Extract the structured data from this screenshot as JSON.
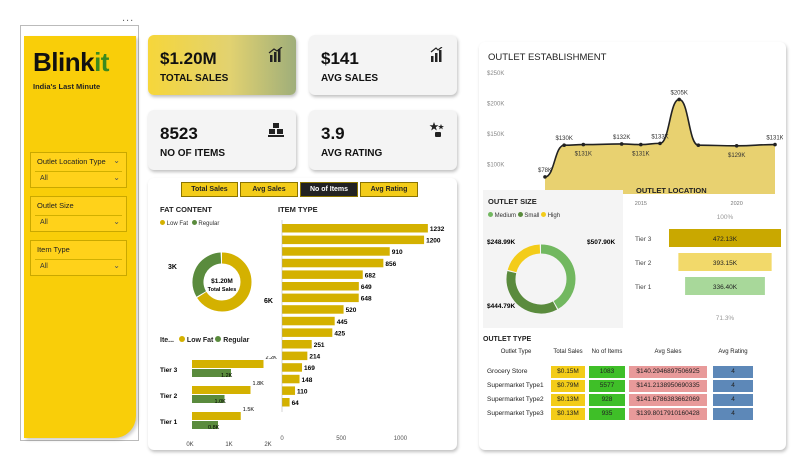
{
  "header": {
    "dots": "..."
  },
  "sidebar": {
    "brand_part1": "Blink",
    "brand_part2": "it",
    "tagline": "India's Last Minute",
    "filters": [
      {
        "label": "Outlet Location Type",
        "value": "All"
      },
      {
        "label": "Outlet Size",
        "value": "All"
      },
      {
        "label": "Item Type",
        "value": "All"
      }
    ]
  },
  "kpis": [
    {
      "value": "$1.20M",
      "label": "TOTAL SALES",
      "icon": "bar-chart-icon"
    },
    {
      "value": "$141",
      "label": "AVG SALES",
      "icon": "bar-chart-icon"
    },
    {
      "value": "8523",
      "label": "NO OF ITEMS",
      "icon": "boxes-icon"
    },
    {
      "value": "3.9",
      "label": "AVG RATING",
      "icon": "stars-icon"
    }
  ],
  "tabs": [
    {
      "label": "Total Sales",
      "active": false
    },
    {
      "label": "Avg Sales",
      "active": false
    },
    {
      "label": "No of Items",
      "active": true
    },
    {
      "label": "Avg Rating",
      "active": false
    }
  ],
  "fat_content": {
    "title": "FAT CONTENT",
    "legend": [
      "Low Fat",
      "Regular"
    ],
    "center_value": "$1.20M",
    "center_label": "Total Sales",
    "label_small": "3K",
    "label_large": "6K",
    "chart_data": {
      "type": "pie",
      "labels": [
        "Low Fat",
        "Regular"
      ],
      "values": [
        6,
        3
      ],
      "colors": [
        "#d4b100",
        "#5a8b3d"
      ]
    }
  },
  "fat_by_tier": {
    "legend_title": "Ite...",
    "legend": [
      "Low Fat",
      "Regular"
    ],
    "chart_data": {
      "type": "bar",
      "categories": [
        "Tier 3",
        "Tier 2",
        "Tier 1"
      ],
      "series": [
        {
          "name": "Low Fat",
          "values": [
            2.2,
            1.8,
            1.5
          ],
          "labels": [
            "2.2K",
            "1.8K",
            "1.5K"
          ],
          "color": "#d4b100"
        },
        {
          "name": "Regular",
          "values": [
            1.2,
            1.0,
            0.8
          ],
          "labels": [
            "1.2K",
            "1.0K",
            "0.8K"
          ],
          "color": "#5a8b3d"
        }
      ],
      "xticks": [
        "0K",
        "1K",
        "2K"
      ],
      "xlim": [
        0,
        2.4
      ]
    }
  },
  "item_type": {
    "title": "ITEM TYPE",
    "chart_data": {
      "type": "bar",
      "values": [
        1232,
        1200,
        910,
        856,
        682,
        649,
        648,
        520,
        445,
        425,
        251,
        214,
        169,
        148,
        110,
        64
      ],
      "xticks": [
        "0",
        "500",
        "1000"
      ],
      "xlim": [
        0,
        1250
      ],
      "color": "#d4b100"
    }
  },
  "outlet_establishment": {
    "title": "OUTLET ESTABLISHMENT",
    "chart_data": {
      "type": "area",
      "x": [
        2010,
        2011,
        2012,
        2014,
        2015,
        2016,
        2017,
        2018,
        2020,
        2022
      ],
      "values": [
        78,
        130,
        131,
        132,
        131,
        133,
        205,
        130,
        129,
        131
      ],
      "labels": [
        "$78K",
        "$130K",
        "$131K",
        "$132K",
        "$131K",
        "$133K",
        "$205K",
        "",
        "$129K",
        "$131K"
      ],
      "ylim": [
        50,
        250
      ],
      "yticks": [
        "$250K",
        "$200K",
        "$150K",
        "$100K",
        "$50K"
      ],
      "xticks": [
        "2010",
        "2015",
        "2020"
      ],
      "color": "#e8d170",
      "line": "#222"
    }
  },
  "outlet_size": {
    "title": "OUTLET SIZE",
    "legend": [
      "Medium",
      "Small",
      "High"
    ],
    "labels": [
      "$507.90K",
      "$444.79K",
      "$248.99K"
    ],
    "chart_data": {
      "type": "pie",
      "labels": [
        "Medium",
        "Small",
        "High"
      ],
      "values": [
        507.9,
        444.79,
        248.99
      ],
      "colors": [
        "#72b860",
        "#5a8b3d",
        "#f3cc19"
      ]
    }
  },
  "outlet_location": {
    "title": "OUTLET LOCATION",
    "top_pct": "100%",
    "bottom_pct": "71.3%",
    "chart_data": {
      "type": "bar",
      "categories": [
        "Tier 3",
        "Tier 2",
        "Tier 1"
      ],
      "values": [
        472.13,
        393.15,
        336.4
      ],
      "labels": [
        "472.13K",
        "393.15K",
        "336.40K"
      ],
      "colors": [
        "#c9a800",
        "#f2d96a",
        "#a8d89a"
      ]
    }
  },
  "outlet_type": {
    "title": "OUTLET TYPE",
    "chart_data": {
      "type": "table",
      "columns": [
        "Outlet Type",
        "Total Sales",
        "No of Items",
        "Avg Sales",
        "Avg Rating"
      ],
      "rows": [
        [
          "Grocery Store",
          "$0.15M",
          "1083",
          "$140.2946897506925",
          "4"
        ],
        [
          "Supermarket Type1",
          "$0.79M",
          "5577",
          "$141.2138950690335",
          "4"
        ],
        [
          "Supermarket Type2",
          "$0.13M",
          "928",
          "$141.6786383662069",
          "4"
        ],
        [
          "Supermarket Type3",
          "$0.13M",
          "935",
          "$139.8017910160428",
          "4"
        ]
      ]
    }
  }
}
